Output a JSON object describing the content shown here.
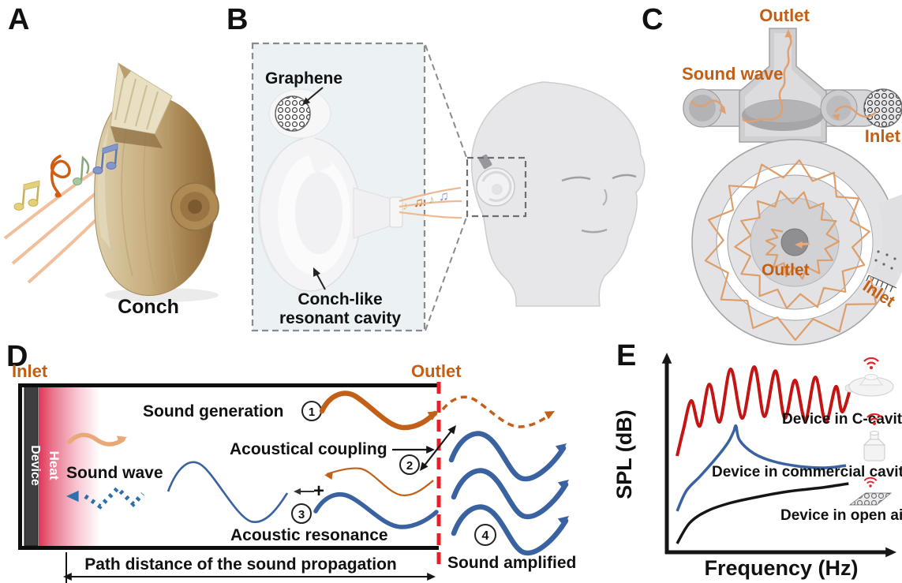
{
  "figure": {
    "type": "scientific-figure",
    "panels": [
      "A",
      "B",
      "C",
      "D",
      "E"
    ]
  },
  "colors": {
    "accent_orange": "#c35f15",
    "wave_blue": "#3a62a0",
    "outlet_line_red": "#ee1c25",
    "heat_red": "#e23457",
    "salmon_wave": "#e8a878",
    "curve_red": "#c41414",
    "curve_blue": "#3a62a0",
    "curve_black": "#161616",
    "wifi_red": "#e02424"
  },
  "panel_a": {
    "label": "A",
    "caption": "Conch"
  },
  "panel_b": {
    "label": "B",
    "graphene_label": "Graphene",
    "cavity_label_line1": "Conch-like",
    "cavity_label_line2": "resonant cavity"
  },
  "panel_c": {
    "label": "C",
    "cross_section": {
      "outlet": "Outlet",
      "sound_wave": "Sound wave",
      "inlet": "Inlet"
    },
    "spiral_view": {
      "outlet": "Outlet",
      "inlet": "Inlet"
    }
  },
  "panel_d": {
    "label": "D",
    "inlet": "Inlet",
    "outlet": "Outlet",
    "device_bar": "Device",
    "heat_bar": "Heat",
    "sound_wave": "Sound wave",
    "plus_sign": "+",
    "steps": [
      {
        "num": "1",
        "label": "Sound generation"
      },
      {
        "num": "2",
        "label": "Acoustical coupling"
      },
      {
        "num": "3",
        "label": "Acoustic resonance"
      },
      {
        "num": "4",
        "label": "Sound amplified"
      }
    ],
    "path_note": "Path distance of the sound propagation"
  },
  "panel_e": {
    "label": "E",
    "ylabel": "SPL (dB)",
    "xlabel": "Frequency (Hz)"
  },
  "chart_data": {
    "type": "line",
    "title": "",
    "xlabel": "Frequency (Hz)",
    "ylabel": "SPL (dB)",
    "axes_numeric": false,
    "grid": false,
    "legend_position": "inline-right",
    "note": "Schematic curves; x/y are normalized 0-1 inside the plot box",
    "series": [
      {
        "name": "Device in C-cavity",
        "color": "#c41414",
        "x": [
          0,
          0.03,
          0.068,
          0.109,
          0.155,
          0.204,
          0.257,
          0.313,
          0.37,
          0.419,
          0.472,
          0.517,
          0.566,
          0.615,
          0.664,
          0.713,
          0.762,
          0.792,
          0.83
        ],
        "y": [
          0.494,
          0.63,
          0.782,
          0.65,
          0.868,
          0.671,
          0.947,
          0.691,
          0.959,
          0.7,
          0.938,
          0.691,
          0.889,
          0.683,
          0.905,
          0.671,
          0.856,
          0.724,
          0.84
        ]
      },
      {
        "name": "Device in commercial cavity",
        "color": "#3a62a0",
        "x": [
          0,
          0.045,
          0.113,
          0.196,
          0.245,
          0.271,
          0.283,
          0.3,
          0.37,
          0.464,
          0.585,
          0.709,
          0.811
        ],
        "y": [
          0.206,
          0.313,
          0.391,
          0.494,
          0.565,
          0.62,
          0.65,
          0.576,
          0.506,
          0.465,
          0.44,
          0.432,
          0.444
        ]
      },
      {
        "name": "Device in open air",
        "color": "#161616",
        "x": [
          0,
          0.06,
          0.143,
          0.249,
          0.385,
          0.536,
          0.694,
          0.823
        ],
        "y": [
          0.037,
          0.144,
          0.206,
          0.247,
          0.28,
          0.309,
          0.329,
          0.35
        ]
      }
    ]
  },
  "icons": {
    "wifi": "red-signal-arcs",
    "c_cavity_device": "conch-like torus speaker",
    "commercial_cavity_device": "cylindrical canister speaker",
    "open_air_device": "graphene mesh sheet"
  }
}
